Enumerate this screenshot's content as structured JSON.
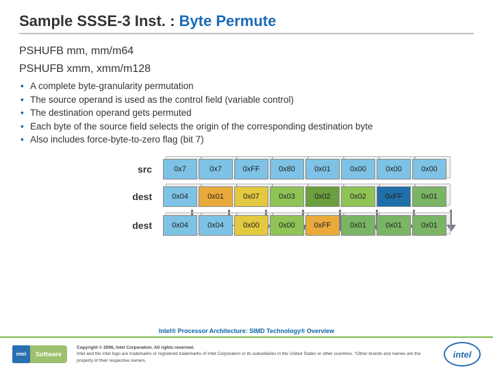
{
  "title": {
    "plain": "Sample SSSE-3 Inst. : ",
    "highlight": "Byte Permute"
  },
  "sub1": "PSHUFB mm, mm/m64",
  "sub2": "PSHUFB xmm, xmm/m128",
  "bullets": [
    {
      "text": "A complete byte-granularity permutation"
    },
    {
      "text": "The source operand is used as the control field",
      "paren": "   (variable control)"
    },
    {
      "text": "The destination operand gets permuted"
    },
    {
      "text": "Each byte of the source field selects the origin of the corresponding destination byte"
    },
    {
      "text": "Also includes force-byte-to-zero flag (bit 7)"
    }
  ],
  "rows": {
    "src": {
      "label": "src",
      "cells": [
        {
          "v": "0x7",
          "bg": "#7ec2e5"
        },
        {
          "v": "0x7",
          "bg": "#7ec2e5"
        },
        {
          "v": "0xFF",
          "bg": "#7ec2e5"
        },
        {
          "v": "0x80",
          "bg": "#7ec2e5"
        },
        {
          "v": "0x01",
          "bg": "#7ec2e5"
        },
        {
          "v": "0x00",
          "bg": "#7ec2e5"
        },
        {
          "v": "0x00",
          "bg": "#7ec2e5"
        },
        {
          "v": "0x00",
          "bg": "#7ec2e5"
        }
      ]
    },
    "dest1": {
      "label": "dest",
      "cells": [
        {
          "v": "0x04",
          "bg": "#7ec2e5"
        },
        {
          "v": "0x01",
          "bg": "#e9aa3b"
        },
        {
          "v": "0x07",
          "bg": "#e2c93f"
        },
        {
          "v": "0x03",
          "bg": "#8fc356"
        },
        {
          "v": "0x02",
          "bg": "#6b9f3d"
        },
        {
          "v": "0x02",
          "bg": "#8fc356"
        },
        {
          "v": "0xFF",
          "bg": "#1f6fa8"
        },
        {
          "v": "0x01",
          "bg": "#7ab565"
        }
      ]
    },
    "dest2": {
      "label": "dest",
      "cells": [
        {
          "v": "0x04",
          "bg": "#7ec2e5"
        },
        {
          "v": "0x04",
          "bg": "#7ec2e5"
        },
        {
          "v": "0x00",
          "bg": "#e2c93f"
        },
        {
          "v": "0x00",
          "bg": "#8fc356"
        },
        {
          "v": "0xFF",
          "bg": "#e9aa3b"
        },
        {
          "v": "0x01",
          "bg": "#7ab565"
        },
        {
          "v": "0x01",
          "bg": "#7ab565"
        },
        {
          "v": "0x01",
          "bg": "#7ab565"
        }
      ]
    }
  },
  "arrows_visible": [
    true,
    true,
    true,
    true,
    true,
    true,
    true,
    true
  ],
  "footer_center": "Intel® Processor Architecture: SIMD Technology® Overview",
  "copyright1": "Copyright © 2006, Intel Corporation. All rights reserved.",
  "copyright2": "Intel and the Intel logo are trademarks or registered trademarks of Intel Corporation or its subsidiaries in the United States or other countries. *Other brands and names are the property of their respective owners.",
  "intel_badge": {
    "sq": "intel",
    "right": "Software"
  },
  "intel_oval": "intel"
}
